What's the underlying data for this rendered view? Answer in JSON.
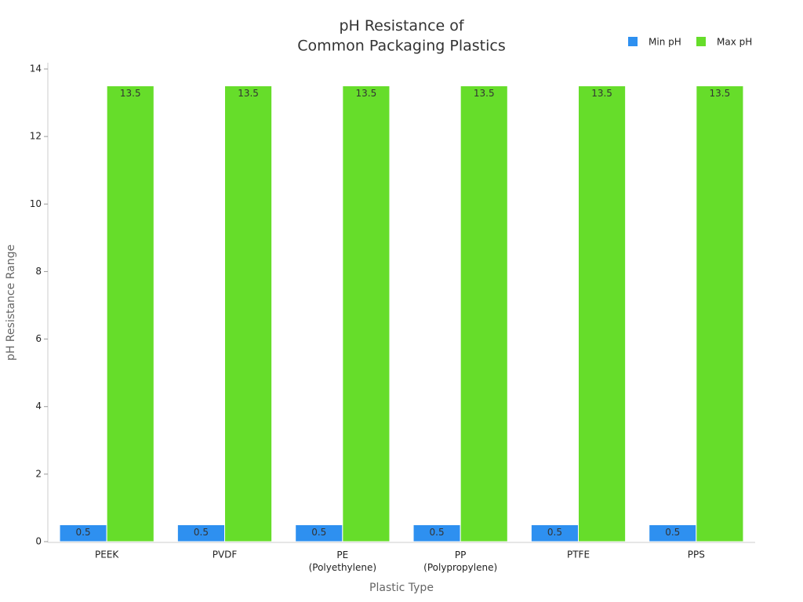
{
  "chart_data": {
    "type": "bar",
    "title": "pH Resistance of\nCommon Packaging Plastics",
    "x_label": "Plastic Type",
    "y_label": "pH Resistance Range",
    "categories": [
      "PEEK",
      "PVDF",
      "PE\n(Polyethylene)",
      "PP\n(Polypropylene)",
      "PTFE",
      "PPS"
    ],
    "series": [
      {
        "name": "Min pH",
        "color": "#2e90f0",
        "values": [
          0.5,
          0.5,
          0.5,
          0.5,
          0.5,
          0.5
        ]
      },
      {
        "name": "Max pH",
        "color": "#66dd2a",
        "values": [
          13.5,
          13.5,
          13.5,
          13.5,
          13.5,
          13.5
        ]
      }
    ],
    "ylim": [
      0,
      14
    ],
    "yticks": [
      0,
      2,
      4,
      6,
      8,
      10,
      12,
      14
    ],
    "grid": false,
    "legend": "top-right"
  }
}
